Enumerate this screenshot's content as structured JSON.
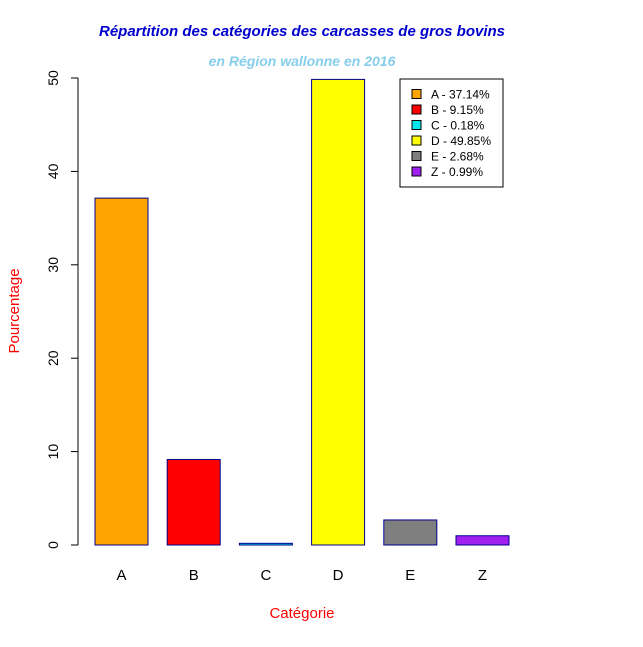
{
  "chart_data": {
    "type": "bar",
    "title": "Répartition des catégories des carcasses de gros bovins",
    "subtitle": "en Région wallonne en 2016",
    "xlabel": "Catégorie",
    "ylabel": "Pourcentage",
    "categories": [
      "A",
      "B",
      "C",
      "D",
      "E",
      "Z"
    ],
    "values": [
      37.14,
      9.15,
      0.18,
      49.85,
      2.68,
      0.99
    ],
    "colors": [
      "#FFA500",
      "#FF0000",
      "#00E5EE",
      "#FFFF00",
      "#7F7F7F",
      "#A020F0"
    ],
    "ylim": [
      0,
      50
    ],
    "yticks": [
      "0",
      "10",
      "20",
      "30",
      "40",
      "50"
    ],
    "grid": false,
    "legend_position": "top-right",
    "legend": [
      "A - 37.14%",
      "B - 9.15%",
      "C - 0.18%",
      "D - 49.85%",
      "E - 2.68%",
      "Z - 0.99%"
    ],
    "title_color": "#0000CD",
    "subtitle_color": "#87CEEB",
    "label_color": "#FF0000",
    "bar_border_color": "#00008B"
  }
}
